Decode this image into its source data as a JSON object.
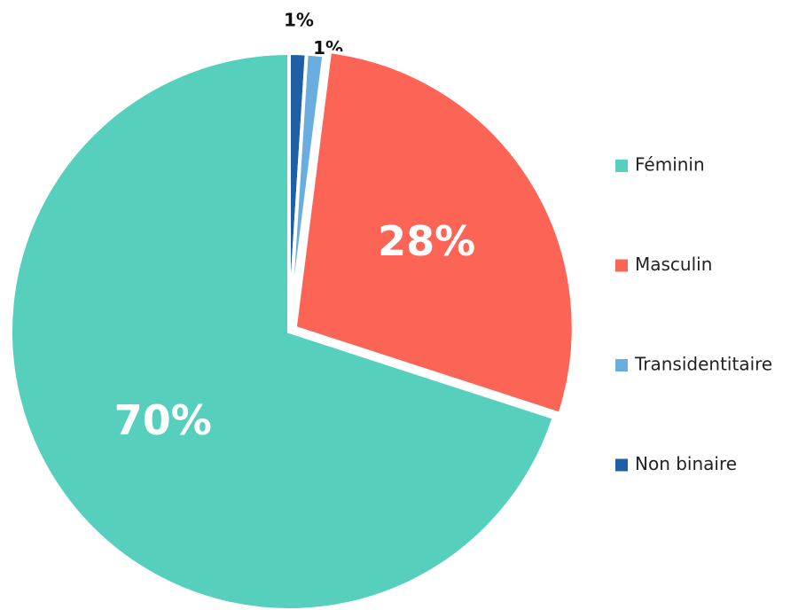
{
  "chart_data": {
    "type": "pie",
    "categories": [
      "Féminin",
      "Masculin",
      "Transidentitaire",
      "Non binaire"
    ],
    "values": [
      70,
      28,
      1,
      1
    ],
    "value_labels": [
      "70%",
      "28%",
      "1%",
      "1%"
    ],
    "colors": [
      "#56d0bc",
      "#fc6456",
      "#6aaee0",
      "#1f5fa5"
    ],
    "legend": "right"
  }
}
